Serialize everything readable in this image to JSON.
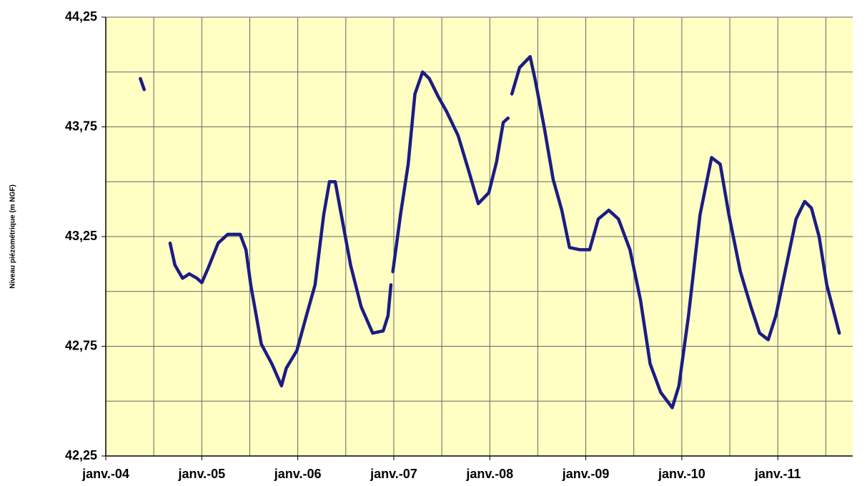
{
  "chart_data": {
    "type": "line",
    "ylabel": "Niveau piézométrique (m NGF)",
    "xlim": [
      2004,
      2011.78
    ],
    "xticks": [
      {
        "value": 2004,
        "label": "janv.-04"
      },
      {
        "value": 2005,
        "label": "janv.-05"
      },
      {
        "value": 2006,
        "label": "janv.-06"
      },
      {
        "value": 2007,
        "label": "janv.-07"
      },
      {
        "value": 2008,
        "label": "janv.-08"
      },
      {
        "value": 2009,
        "label": "janv.-09"
      },
      {
        "value": 2010,
        "label": "janv.-10"
      },
      {
        "value": 2011,
        "label": "janv.-11"
      }
    ],
    "xminor": [
      2004.5,
      2005.5,
      2006.5,
      2007.5,
      2008.5,
      2009.5,
      2010.5,
      2011.5
    ],
    "ylim": [
      42.25,
      44.25
    ],
    "yticks": [
      {
        "value": 42.25,
        "label": "42,25"
      },
      {
        "value": 42.75,
        "label": "42,75"
      },
      {
        "value": 43.25,
        "label": "43,25"
      },
      {
        "value": 43.75,
        "label": "43,75"
      },
      {
        "value": 44.25,
        "label": "44,25"
      }
    ],
    "yminor": [
      42.5,
      43,
      43.5,
      44
    ],
    "grid": true,
    "series": [
      {
        "color": "#1c1c84",
        "x": [
          2004.36,
          2004.4,
          null,
          2004.67,
          2004.72,
          2004.8,
          2004.87,
          2004.95,
          2005.0,
          2005.07,
          2005.17,
          2005.27,
          2005.4,
          2005.46,
          2005.51,
          2005.62,
          2005.73,
          2005.83,
          2005.88,
          2005.99,
          2006.09,
          2006.18,
          2006.27,
          2006.33,
          2006.39,
          2006.44,
          2006.55,
          2006.66,
          2006.78,
          2006.89,
          2006.94,
          2006.97,
          null,
          2006.99,
          2007.07,
          2007.15,
          2007.22,
          2007.3,
          2007.37,
          2007.46,
          2007.55,
          2007.67,
          2007.78,
          2007.88,
          2007.99,
          2008.07,
          2008.14,
          2008.19,
          null,
          2008.23,
          2008.31,
          2008.42,
          2008.47,
          2008.57,
          2008.66,
          2008.75,
          2008.83,
          2008.94,
          2009.04,
          2009.13,
          2009.24,
          2009.34,
          2009.46,
          2009.57,
          2009.67,
          2009.78,
          2009.9,
          2009.97,
          2010.07,
          2010.19,
          2010.31,
          2010.4,
          2010.49,
          2010.61,
          2010.72,
          2010.81,
          2010.9,
          2010.98,
          2011.09,
          2011.19,
          2011.28,
          2011.35,
          2011.43,
          2011.51,
          2011.64
        ],
        "values": [
          43.97,
          43.92,
          null,
          43.22,
          43.12,
          43.06,
          43.08,
          43.06,
          43.04,
          43.11,
          43.22,
          43.26,
          43.26,
          43.19,
          43.03,
          42.76,
          42.67,
          42.57,
          42.65,
          42.73,
          42.89,
          43.03,
          43.35,
          43.5,
          43.5,
          43.38,
          43.12,
          42.93,
          42.81,
          42.82,
          42.89,
          43.03,
          null,
          43.09,
          43.35,
          43.58,
          43.9,
          44.0,
          43.97,
          43.89,
          43.82,
          43.71,
          43.55,
          43.4,
          43.45,
          43.59,
          43.77,
          43.79,
          null,
          43.9,
          44.02,
          44.07,
          43.97,
          43.74,
          43.51,
          43.37,
          43.2,
          43.19,
          43.19,
          43.33,
          43.37,
          43.33,
          43.19,
          42.96,
          42.67,
          42.54,
          42.47,
          42.57,
          42.89,
          43.35,
          43.61,
          43.58,
          43.35,
          43.09,
          42.93,
          42.81,
          42.78,
          42.89,
          43.12,
          43.33,
          43.41,
          43.38,
          43.25,
          43.03,
          42.81
        ]
      }
    ]
  }
}
